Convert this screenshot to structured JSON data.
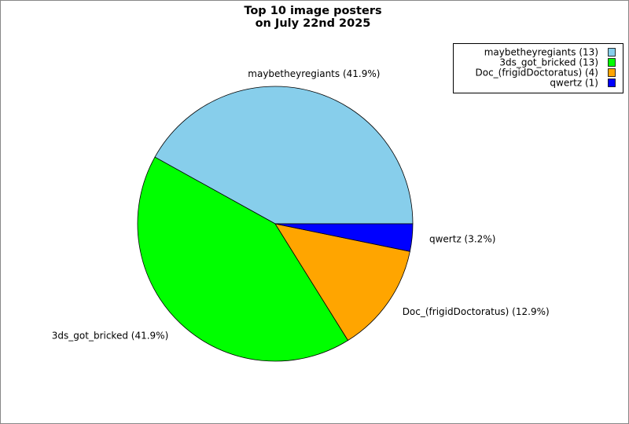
{
  "chart_data": {
    "type": "pie",
    "title": "Top 10 image posters",
    "subtitle": "on July 22nd 2025",
    "values": [
      13,
      13,
      4,
      1
    ],
    "colors": [
      "#87ceeb",
      "#00ff00",
      "#ffa500",
      "#0000ff"
    ],
    "slice_labels": [
      "maybetheyregiants (41.9%)",
      "3ds_got_bricked (41.9%)",
      "Doc_(frigidDoctoratus) (12.9%)",
      "qwertz (3.2%)"
    ],
    "legend_labels": [
      "maybetheyregiants (13)",
      "3ds_got_bricked (13)",
      "Doc_(frigidDoctoratus) (4)",
      "qwertz (1)"
    ],
    "legend": "upper right"
  }
}
